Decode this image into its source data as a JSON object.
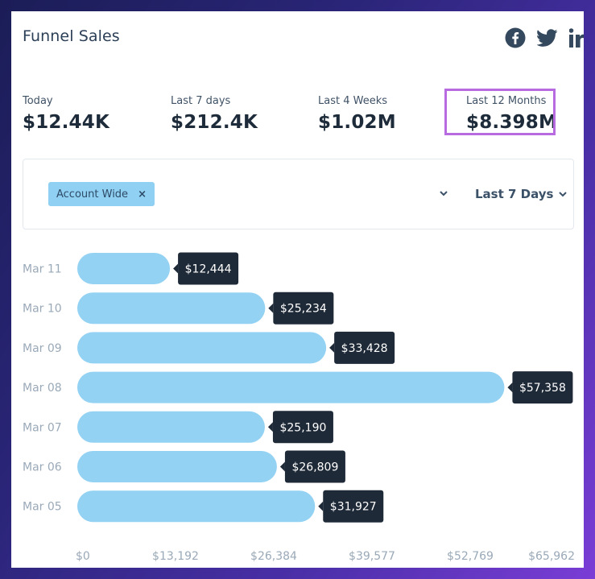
{
  "header": {
    "title": "Funnel Sales"
  },
  "social": {
    "icons": [
      "facebook-icon",
      "twitter-icon",
      "linkedin-icon"
    ]
  },
  "stats": [
    {
      "label": "Today",
      "value": "$12.44K"
    },
    {
      "label": "Last 7 days",
      "value": "$212.4K"
    },
    {
      "label": "Last 4 Weeks",
      "value": "$1.02M"
    },
    {
      "label": "Last 12 Months",
      "value": "$8.398M"
    }
  ],
  "filters": {
    "tag_label": "Account Wide",
    "tag_remove": "×",
    "range_label": "Last 7 Days"
  },
  "colors": {
    "bar": "#94d2f4",
    "tooltip_bg": "#1f2a38",
    "highlight": "#b86be0",
    "axis_text": "#9aa9b8"
  },
  "chart_data": {
    "type": "bar",
    "orientation": "horizontal",
    "categories": [
      "Mar 11",
      "Mar 10",
      "Mar 09",
      "Mar 08",
      "Mar 07",
      "Mar 06",
      "Mar 05"
    ],
    "values": [
      12444,
      25234,
      33428,
      57358,
      25190,
      26809,
      31927
    ],
    "value_labels": [
      "$12,444",
      "$25,234",
      "$33,428",
      "$57,358",
      "$25,190",
      "$26,809",
      "$31,927"
    ],
    "x_ticks": [
      "$0",
      "$13,192",
      "$26,384",
      "$39,577",
      "$52,769",
      "$65,962"
    ],
    "xlim": [
      0,
      65962
    ]
  }
}
